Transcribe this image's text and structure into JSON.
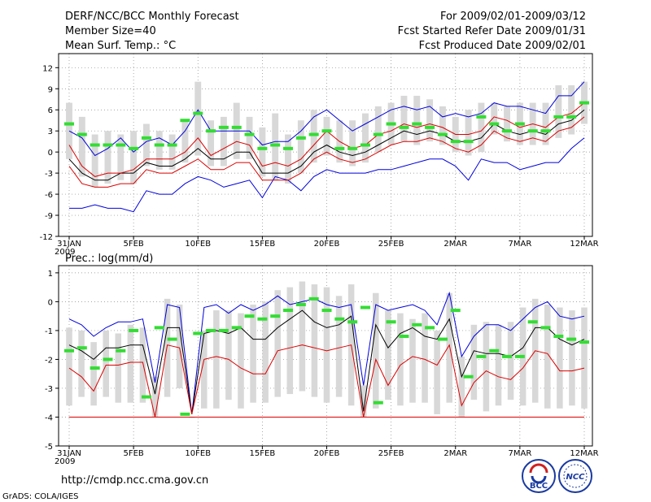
{
  "header": {
    "left": [
      "DERF/NCC/BCC Monthly Forecast",
      "Member Size=40",
      "Mean Surf. Temp.: °C"
    ],
    "right": [
      "For 2009/02/01-2009/03/12",
      "Fcst Started Refer Date 2009/01/31",
      "Fcst Produced Date 2009/02/01"
    ]
  },
  "footer": {
    "url": "http://cmdp.ncc.cma.gov.cn",
    "grads": "GrADS: COLA/IGES",
    "logo1": "BCC",
    "logo2": "NCC"
  },
  "colors": {
    "max": "#0000dd",
    "min": "#0000dd",
    "mean": "#000000",
    "spread": "#dd0000",
    "bar": "#d8d8d8",
    "marker": "#33dd33"
  },
  "chart_data": [
    {
      "type": "line",
      "title": "Mean Surf. Temp.: °C",
      "x_ticks": [
        "31JAN",
        "5FEB",
        "10FEB",
        "15FEB",
        "20FEB",
        "25FEB",
        "2MAR",
        "7MAR",
        "12MAR"
      ],
      "x_tick_days": [
        0,
        5,
        10,
        15,
        20,
        25,
        30,
        35,
        40
      ],
      "x_year": "2009",
      "ylim": [
        -12,
        14
      ],
      "yticks": [
        -12,
        -9,
        -6,
        -3,
        0,
        3,
        6,
        9,
        12
      ],
      "series": [
        {
          "name": "max",
          "values": [
            3,
            2,
            -0.5,
            0.5,
            2,
            0,
            1.5,
            2,
            1,
            3,
            6,
            3,
            3,
            3,
            3,
            1,
            1.5,
            1.5,
            3,
            5,
            6,
            4.5,
            3,
            4,
            5,
            6,
            6.5,
            6,
            6.5,
            5,
            5.5,
            5,
            5.5,
            7,
            6.5,
            6.5,
            6,
            5.5,
            8,
            8,
            10
          ]
        },
        {
          "name": "spread_high",
          "values": [
            1,
            -2,
            -3.5,
            -3,
            -3,
            -2.5,
            -1,
            -1,
            -1,
            0,
            2,
            -0.5,
            0.5,
            1.5,
            1,
            -2,
            -1.5,
            -2,
            -1,
            1,
            3,
            1.5,
            0.5,
            1,
            2.5,
            3,
            4,
            3.5,
            4,
            3.5,
            2.5,
            2.5,
            3,
            5,
            4.5,
            3.5,
            4,
            3.5,
            5,
            5.5,
            7
          ]
        },
        {
          "name": "mean",
          "values": [
            -1,
            -3,
            -4,
            -4,
            -3,
            -3,
            -1.5,
            -2,
            -2,
            -1,
            0.5,
            -1,
            -1,
            0,
            0,
            -3,
            -3,
            -3,
            -2,
            0,
            1,
            0,
            -0.5,
            0,
            1,
            2,
            3,
            2.5,
            3,
            2.5,
            1.5,
            1.5,
            2,
            4,
            3,
            2.5,
            3,
            2.5,
            4,
            4.5,
            6
          ]
        },
        {
          "name": "spread_low",
          "values": [
            -2,
            -4.5,
            -5,
            -5,
            -4.5,
            -4.5,
            -2.5,
            -3,
            -3,
            -2,
            -1,
            -2.5,
            -2.5,
            -1.5,
            -1.5,
            -4,
            -4,
            -4,
            -3,
            -1,
            0,
            -1,
            -1.5,
            -1,
            0,
            1,
            1.5,
            1.5,
            2,
            1.5,
            0.5,
            0,
            1,
            3,
            2,
            1.5,
            2,
            1.5,
            3,
            3.5,
            5
          ]
        },
        {
          "name": "min",
          "values": [
            -8,
            -8,
            -7.5,
            -8,
            -8,
            -8.5,
            -5.5,
            -6,
            -6,
            -4.5,
            -3.5,
            -4,
            -5,
            -4.5,
            -4,
            -6.5,
            -3.5,
            -4,
            -5.5,
            -3.5,
            -2.5,
            -3,
            -3,
            -3,
            -2.5,
            -2.5,
            -2,
            -1.5,
            -1,
            -1,
            -2,
            -4,
            -1,
            -1.5,
            -1.5,
            -2.5,
            -2,
            -1.5,
            -1.5,
            0.5,
            2
          ]
        },
        {
          "name": "markers",
          "values": [
            4,
            2.5,
            1,
            1,
            1,
            0.5,
            2,
            1,
            1,
            4.5,
            5.5,
            3,
            3.5,
            3.5,
            2.5,
            0.5,
            1,
            0.5,
            2,
            2.5,
            3,
            0.5,
            0.5,
            1,
            2.5,
            4,
            3.5,
            4,
            3.5,
            2.5,
            1.5,
            1.5,
            5,
            4,
            3,
            4,
            3,
            3,
            5,
            5,
            7
          ]
        }
      ],
      "bars": {
        "low": [
          -1,
          -3.5,
          -5,
          -4.5,
          -4,
          -4.5,
          -2,
          -2.5,
          -2.5,
          -1.5,
          -0.5,
          -2,
          -2,
          -1,
          -1,
          -3.5,
          -4,
          -4.5,
          -3,
          -1.5,
          -0.5,
          -1.5,
          -2,
          -1.5,
          0,
          1,
          1.5,
          1,
          1.5,
          1,
          0,
          -0.5,
          0,
          2.5,
          1.5,
          1,
          1,
          1,
          2,
          2.5,
          4
        ],
        "high": [
          7,
          5,
          2.5,
          3,
          2.5,
          3,
          4,
          3,
          2.5,
          4.5,
          10,
          4.5,
          5,
          7,
          5,
          3.5,
          5.5,
          2.5,
          4.5,
          6,
          5,
          4.5,
          4.5,
          5.5,
          6.5,
          7,
          8,
          8,
          7.5,
          6.5,
          5,
          6,
          7,
          7,
          6.5,
          7,
          7,
          7,
          9.5,
          9.5,
          10
        ]
      }
    },
    {
      "type": "line",
      "title": "Prec.: log(mm/d)",
      "x_ticks": [
        "31JAN",
        "5FEB",
        "10FEB",
        "15FEB",
        "20FEB",
        "25FEB",
        "2MAR",
        "7MAR",
        "12MAR"
      ],
      "x_tick_days": [
        0,
        5,
        10,
        15,
        20,
        25,
        30,
        35,
        40
      ],
      "x_year": "2009",
      "ylim": [
        -5,
        1.25
      ],
      "yticks": [
        -5,
        -4,
        -3,
        -2,
        -1,
        0,
        1
      ],
      "series": [
        {
          "name": "max",
          "values": [
            -0.6,
            -0.8,
            -1.2,
            -0.9,
            -0.7,
            -0.7,
            -0.6,
            -2.8,
            -0.1,
            -0.2,
            -3.9,
            -0.2,
            -0.1,
            -0.4,
            -0.1,
            -0.3,
            -0.1,
            0.2,
            -0.1,
            0.0,
            0.1,
            -0.1,
            -0.2,
            -0.1,
            -2.9,
            -0.1,
            -0.3,
            -0.2,
            -0.1,
            -0.3,
            -0.8,
            0.3,
            -1.9,
            -1.2,
            -0.8,
            -0.8,
            -1.0,
            -0.6,
            -0.2,
            0.0,
            -0.5,
            -0.6,
            -0.5
          ]
        },
        {
          "name": "mean",
          "values": [
            -1.5,
            -1.7,
            -2.0,
            -1.6,
            -1.6,
            -1.5,
            -1.5,
            -3.2,
            -0.9,
            -0.9,
            -3.9,
            -1.1,
            -1.0,
            -1.1,
            -0.9,
            -1.3,
            -1.3,
            -0.9,
            -0.6,
            -0.3,
            -0.7,
            -0.9,
            -0.8,
            -0.5,
            -3.8,
            -0.8,
            -1.6,
            -1.1,
            -0.9,
            -1.2,
            -1.3,
            -0.6,
            -2.6,
            -1.7,
            -1.8,
            -1.8,
            -1.9,
            -1.6,
            -0.9,
            -0.9,
            -1.3,
            -1.5,
            -1.3
          ]
        },
        {
          "name": "spread_low",
          "values": [
            -2.3,
            -2.6,
            -3.1,
            -2.2,
            -2.2,
            -2.1,
            -2.1,
            -4.0,
            -1.5,
            -1.6,
            -3.9,
            -2.0,
            -1.9,
            -2.0,
            -2.3,
            -2.5,
            -2.5,
            -1.7,
            -1.6,
            -1.5,
            -1.6,
            -1.7,
            -1.6,
            -1.5,
            -4.0,
            -2.0,
            -2.9,
            -2.2,
            -1.9,
            -2.0,
            -2.2,
            -1.5,
            -3.6,
            -2.8,
            -2.4,
            -2.6,
            -2.7,
            -2.3,
            -1.7,
            -1.8,
            -2.4,
            -2.4,
            -2.3
          ]
        },
        {
          "name": "floor",
          "values": [
            -4,
            -4,
            -4,
            -4,
            -4,
            -4,
            -4,
            -4,
            -4,
            -4,
            -4,
            -4,
            -4,
            -4,
            -4,
            -4,
            -4,
            -4,
            -4,
            -4,
            -4,
            -4,
            -4,
            -4,
            -4,
            -4,
            -4,
            -4,
            -4,
            -4,
            -4,
            -4,
            -4,
            -4,
            -4,
            -4,
            -4,
            -4,
            -4,
            -4,
            -4,
            -4,
            -4
          ]
        },
        {
          "name": "markers",
          "values": [
            -1.7,
            -1.6,
            -2.3,
            -2.0,
            -1.7,
            -1.0,
            -3.3,
            -0.9,
            -1.3,
            -3.9,
            -1.1,
            -1.0,
            -1.0,
            -0.9,
            -0.5,
            -0.6,
            -0.5,
            -0.3,
            -0.1,
            0.1,
            -0.3,
            -0.6,
            -0.7,
            -0.2,
            -3.5,
            -0.7,
            -1.2,
            -0.8,
            -0.9,
            -1.3,
            -0.3,
            -2.6,
            -1.9,
            -1.7,
            -1.9,
            -1.9,
            -0.7,
            -0.9,
            -1.2,
            -1.3,
            -1.4
          ]
        },
        {
          "name": "bars_low",
          "values": [
            -3.6,
            -3.3,
            -3.6,
            -3.3,
            -3.5,
            -3.5,
            -3.5,
            -4,
            -3.3,
            -3.0,
            -4,
            -3.7,
            -3.7,
            -3.4,
            -3.7,
            -3.5,
            -3.5,
            -3.3,
            -3.2,
            -3.1,
            -3.3,
            -3.5,
            -3.3,
            -3.6,
            -4,
            -3.7,
            -3.4,
            -3.6,
            -3.5,
            -3.5,
            -3.9,
            -3.5,
            -4,
            -3.4,
            -3.8,
            -3.6,
            -3.4,
            -3.6,
            -3.5,
            -3.7,
            -3.7,
            -3.6,
            -3.7
          ]
        },
        {
          "name": "bars_high",
          "values": [
            -0.9,
            -1.0,
            -1.4,
            -1.0,
            -1.1,
            -0.8,
            -0.9,
            -2.6,
            0.1,
            -0.1,
            -4,
            -1.0,
            -0.3,
            -0.3,
            -0.4,
            -0.1,
            0.0,
            0.4,
            0.5,
            0.7,
            0.6,
            0.5,
            0.2,
            0.6,
            -2.9,
            0.3,
            -0.3,
            -0.4,
            -0.6,
            -0.4,
            -1.0,
            0.3,
            -1.9,
            -0.8,
            -0.7,
            -0.8,
            -0.7,
            -0.2,
            0.1,
            -0.1,
            -0.2,
            -0.3,
            -0.2
          ]
        }
      ]
    }
  ]
}
